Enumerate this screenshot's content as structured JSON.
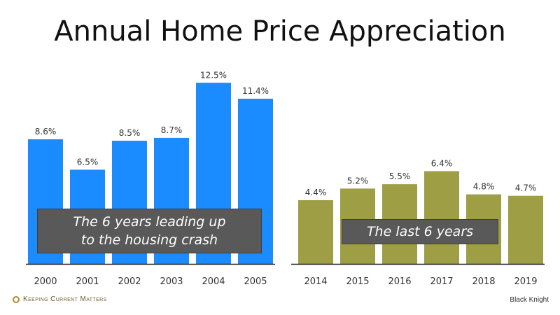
{
  "title": "Annual Home Price Appreciation",
  "source": "Black Knight",
  "logo_text": "Keeping Current Matters",
  "colors": {
    "group1": "#1a8cff",
    "group2": "#9e9e45",
    "axis": "#222222",
    "note_bg": "#595959"
  },
  "chart_data": [
    {
      "type": "bar",
      "categories": [
        "2000",
        "2001",
        "2002",
        "2003",
        "2004",
        "2005"
      ],
      "values": [
        8.6,
        6.5,
        8.5,
        8.7,
        12.5,
        11.4
      ],
      "value_labels": [
        "8.6%",
        "6.5%",
        "8.5%",
        "8.7%",
        "12.5%",
        "11.4%"
      ],
      "annotation": [
        "The 6 years leading up",
        "to the housing crash"
      ],
      "ylim": [
        0,
        13
      ]
    },
    {
      "type": "bar",
      "categories": [
        "2014",
        "2015",
        "2016",
        "2017",
        "2018",
        "2019"
      ],
      "values": [
        4.4,
        5.2,
        5.5,
        6.4,
        4.8,
        4.7
      ],
      "value_labels": [
        "4.4%",
        "5.2%",
        "5.5%",
        "6.4%",
        "4.8%",
        "4.7%"
      ],
      "annotation": [
        "The last 6 years"
      ],
      "ylim": [
        0,
        13
      ]
    }
  ]
}
